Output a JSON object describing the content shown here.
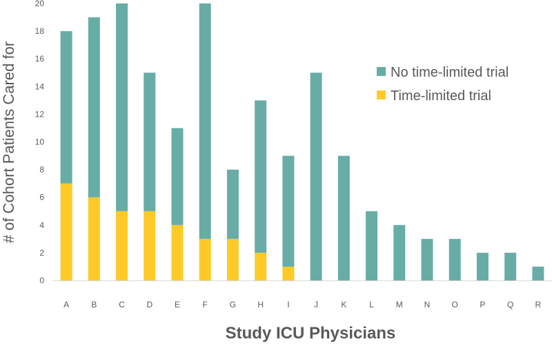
{
  "chart_data": {
    "type": "bar",
    "stacked": true,
    "xlabel": "Study ICU Physicians",
    "ylabel": "# of Cohort Patients Cared for",
    "ylim": [
      0,
      20
    ],
    "yticks": [
      0,
      2,
      4,
      6,
      8,
      10,
      12,
      14,
      16,
      18,
      20
    ],
    "categories": [
      "A",
      "B",
      "C",
      "D",
      "E",
      "F",
      "G",
      "H",
      "I",
      "J",
      "K",
      "L",
      "M",
      "N",
      "O",
      "P",
      "Q",
      "R"
    ],
    "series": [
      {
        "name": "Time-limited trial",
        "color": "#FFCA28",
        "values": [
          7,
          6,
          5,
          5,
          4,
          3,
          3,
          2,
          1,
          0,
          0,
          0,
          0,
          0,
          0,
          0,
          0,
          0
        ]
      },
      {
        "name": "No time-limited trial",
        "color": "#67ADA6",
        "values": [
          11,
          13,
          15,
          10,
          7,
          17,
          5,
          11,
          8,
          15,
          9,
          5,
          4,
          3,
          3,
          2,
          2,
          1
        ]
      }
    ],
    "legend": {
      "position": "right",
      "items": [
        "No time-limited trial",
        "Time-limited trial"
      ]
    },
    "grid": false
  }
}
